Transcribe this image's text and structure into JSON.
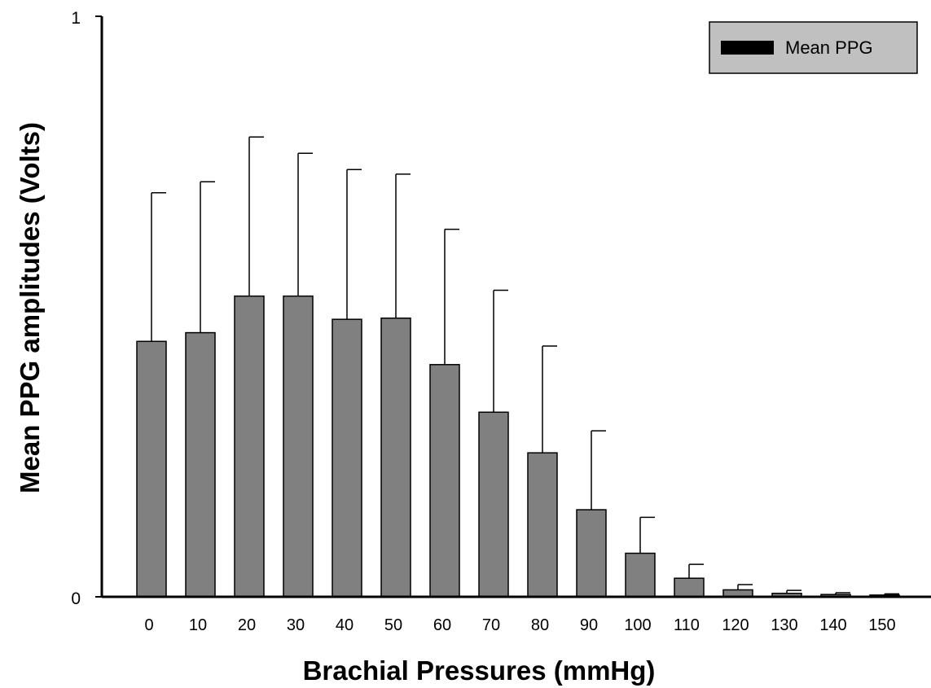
{
  "chart_data": {
    "type": "bar",
    "title": "",
    "xlabel": "Brachial Pressures (mmHg)",
    "ylabel": "Mean PPG amplitudes (Volts)",
    "ylim": [
      0,
      1
    ],
    "yticks": [
      "0",
      "1"
    ],
    "categories": [
      "0",
      "10",
      "20",
      "30",
      "40",
      "50",
      "60",
      "70",
      "80",
      "90",
      "100",
      "110",
      "120",
      "130",
      "140",
      "150"
    ],
    "series": [
      {
        "name": "Mean PPG",
        "values": [
          0.44,
          0.455,
          0.518,
          0.518,
          0.478,
          0.48,
          0.4,
          0.318,
          0.248,
          0.15,
          0.075,
          0.032,
          0.012,
          0.006,
          0.004,
          0.003
        ],
        "error_plus": [
          0.256,
          0.26,
          0.274,
          0.246,
          0.258,
          0.248,
          0.233,
          0.21,
          0.184,
          0.136,
          0.062,
          0.024,
          0.009,
          0.005,
          0.003,
          0.002
        ]
      }
    ],
    "legend": {
      "position": "top-right"
    },
    "grid": false,
    "colors": {
      "bar": "#808080",
      "bar_stroke": "#000000",
      "legend_bg": "#c0c0c0",
      "legend_swatch": "#000000",
      "axis": "#000000"
    }
  }
}
